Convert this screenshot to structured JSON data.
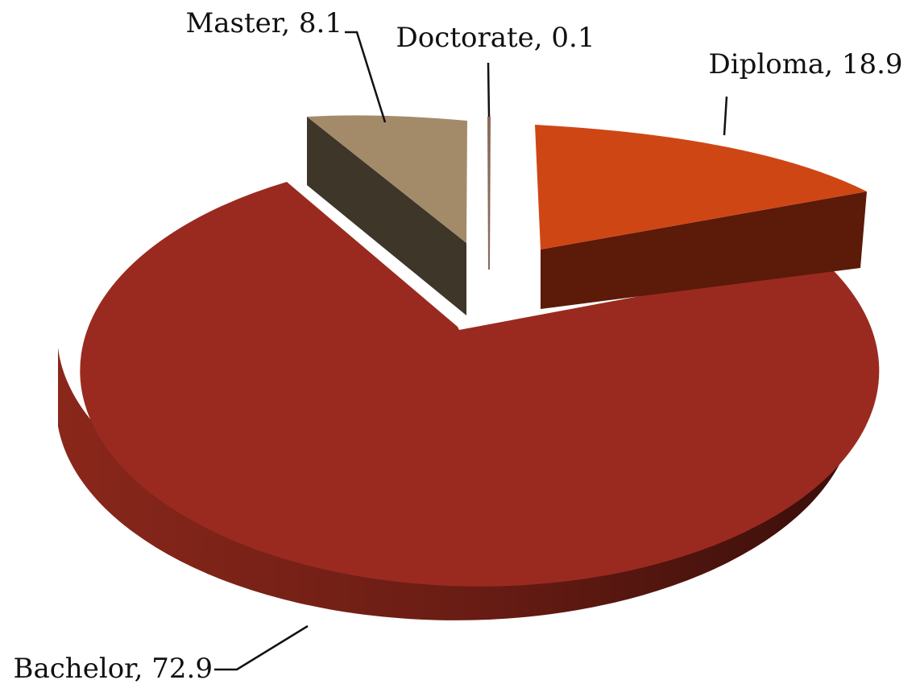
{
  "chart_data": {
    "type": "pie",
    "style": "3d-exploded",
    "title": "",
    "legend": "none",
    "slices": [
      {
        "label": "Diploma",
        "value": 18.9,
        "display": "Diploma, 18.9",
        "color": "#cf4615",
        "side_color": "#5c1a08"
      },
      {
        "label": "Bachelor",
        "value": 72.9,
        "display": "Bachelor, 72.9",
        "color": "#9a2a1f",
        "side_color": "#6a1a12"
      },
      {
        "label": "Master",
        "value": 8.1,
        "display": "Master, 8.1",
        "color": "#a38b6a",
        "side_color": "#3d3629"
      },
      {
        "label": "Doctorate",
        "value": 0.1,
        "display": "Doctorate, 0.1",
        "color": "#8a6a5a",
        "side_color": "#5a4038"
      }
    ]
  }
}
